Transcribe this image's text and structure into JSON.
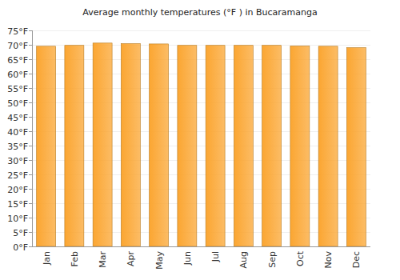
{
  "chart_data": {
    "type": "bar",
    "title": "Average monthly temperatures (°F ) in Bucaramanga",
    "categories": [
      "Jan",
      "Feb",
      "Mar",
      "Apr",
      "May",
      "Jun",
      "Jul",
      "Aug",
      "Sep",
      "Oct",
      "Nov",
      "Dec"
    ],
    "values": [
      69.5,
      69.8,
      70.6,
      70.4,
      70.3,
      69.8,
      69.8,
      69.8,
      69.8,
      69.6,
      69.5,
      69.0
    ],
    "color": "#fba632",
    "ylim": [
      0,
      75
    ],
    "yticks": [
      {
        "value": 0,
        "label": "0°F"
      },
      {
        "value": 5,
        "label": "5°F"
      },
      {
        "value": 10,
        "label": "10°F"
      },
      {
        "value": 15,
        "label": "15°F"
      },
      {
        "value": 20,
        "label": "20°F"
      },
      {
        "value": 25,
        "label": "25°F"
      },
      {
        "value": 30,
        "label": "30°F"
      },
      {
        "value": 35,
        "label": "35°F"
      },
      {
        "value": 40,
        "label": "40°F"
      },
      {
        "value": 45,
        "label": "45°F"
      },
      {
        "value": 50,
        "label": "50°F"
      },
      {
        "value": 55,
        "label": "55°F"
      },
      {
        "value": 60,
        "label": "60°F"
      },
      {
        "value": 65,
        "label": "65°F"
      },
      {
        "value": 70,
        "label": "70°F"
      },
      {
        "value": 75,
        "label": "75°F"
      }
    ],
    "grid": true
  }
}
